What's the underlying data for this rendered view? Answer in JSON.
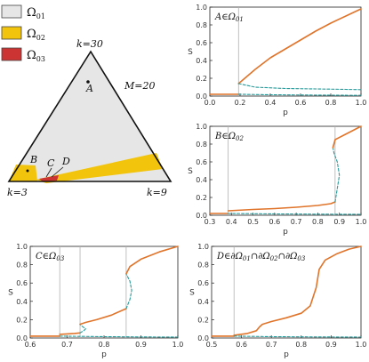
{
  "legend": [
    {
      "label": "Ω01",
      "color": "#e6e6e6"
    },
    {
      "label": "Ω02",
      "color": "#f2c40c"
    },
    {
      "label": "Ω03",
      "color": "#cc3333"
    }
  ],
  "triangle": {
    "top_label": "k=30",
    "left_label": "k=3",
    "right_label": "k=9",
    "m_label": "M=20",
    "points": [
      "A",
      "B",
      "C",
      "D"
    ]
  },
  "colors": {
    "stable": "#e0742a",
    "unstable": "#2a9a9a",
    "vline": "#b0b0b0",
    "omega01": "#e6e6e6",
    "omega02": "#f2c40c",
    "omega03": "#cc3333"
  },
  "chart_data": [
    {
      "type": "line",
      "title": "A∈Ω01",
      "xlabel": "p",
      "ylabel": "S",
      "xlim": [
        0.0,
        1.0
      ],
      "ylim": [
        0.0,
        1.0
      ],
      "xticks": [
        "0.0",
        "0.2",
        "0.4",
        "0.6",
        "0.8",
        "1.0"
      ],
      "yticks": [
        "0.0",
        "0.2",
        "0.4",
        "0.6",
        "0.8",
        "1.0"
      ],
      "vlines": [
        0.19
      ],
      "series": [
        {
          "style": "stable",
          "x": [
            0.0,
            0.19
          ],
          "y": [
            0.02,
            0.02
          ]
        },
        {
          "style": "stable",
          "x": [
            0.19,
            0.3,
            0.4,
            0.5,
            0.6,
            0.7,
            0.8,
            0.9,
            1.0
          ],
          "y": [
            0.14,
            0.3,
            0.43,
            0.53,
            0.63,
            0.73,
            0.82,
            0.9,
            0.98
          ]
        },
        {
          "style": "unstable",
          "x": [
            0.19,
            0.3,
            0.5,
            0.7,
            0.9,
            1.0
          ],
          "y": [
            0.14,
            0.1,
            0.085,
            0.08,
            0.075,
            0.072
          ]
        },
        {
          "style": "unstable",
          "x": [
            0.19,
            0.4,
            0.6,
            0.8,
            1.0
          ],
          "y": [
            0.02,
            0.015,
            0.012,
            0.01,
            0.008
          ]
        }
      ]
    },
    {
      "type": "line",
      "title": "B∈Ω02",
      "xlabel": "p",
      "ylabel": "S",
      "xlim": [
        0.3,
        1.0
      ],
      "ylim": [
        0.0,
        1.0
      ],
      "xticks": [
        "0.3",
        "0.4",
        "0.5",
        "0.6",
        "0.7",
        "0.8",
        "0.9",
        "1.0"
      ],
      "yticks": [
        "0.0",
        "0.2",
        "0.4",
        "0.6",
        "0.8",
        "1.0"
      ],
      "vlines": [
        0.385,
        0.88
      ],
      "series": [
        {
          "style": "stable",
          "x": [
            0.3,
            0.385
          ],
          "y": [
            0.02,
            0.02
          ]
        },
        {
          "style": "stable",
          "x": [
            0.385,
            0.5,
            0.6,
            0.7,
            0.8,
            0.86,
            0.88
          ],
          "y": [
            0.05,
            0.065,
            0.075,
            0.09,
            0.11,
            0.13,
            0.15
          ]
        },
        {
          "style": "unstable",
          "x": [
            0.88,
            0.89,
            0.9,
            0.89,
            0.875,
            0.87
          ],
          "y": [
            0.15,
            0.3,
            0.45,
            0.6,
            0.7,
            0.76
          ]
        },
        {
          "style": "stable",
          "x": [
            0.87,
            0.88,
            0.92,
            0.96,
            1.0
          ],
          "y": [
            0.76,
            0.85,
            0.9,
            0.95,
            1.0
          ]
        },
        {
          "style": "unstable",
          "x": [
            0.385,
            0.6,
            0.8,
            1.0
          ],
          "y": [
            0.02,
            0.015,
            0.012,
            0.01
          ]
        }
      ]
    },
    {
      "type": "line",
      "title": "C∈Ω03",
      "xlabel": "p",
      "ylabel": "S",
      "xlim": [
        0.6,
        1.0
      ],
      "ylim": [
        0.0,
        1.0
      ],
      "xticks": [
        "0.6",
        "0.7",
        "0.8",
        "0.9",
        "1.0"
      ],
      "yticks": [
        "0.0",
        "0.2",
        "0.4",
        "0.6",
        "0.8",
        "1.0"
      ],
      "vlines": [
        0.68,
        0.735,
        0.86
      ],
      "series": [
        {
          "style": "stable",
          "x": [
            0.6,
            0.68
          ],
          "y": [
            0.02,
            0.02
          ]
        },
        {
          "style": "stable",
          "x": [
            0.68,
            0.7,
            0.72,
            0.735
          ],
          "y": [
            0.04,
            0.045,
            0.05,
            0.055
          ]
        },
        {
          "style": "unstable",
          "x": [
            0.735,
            0.745,
            0.75,
            0.74,
            0.735
          ],
          "y": [
            0.055,
            0.08,
            0.1,
            0.13,
            0.15
          ]
        },
        {
          "style": "stable",
          "x": [
            0.735,
            0.75,
            0.78,
            0.82,
            0.86
          ],
          "y": [
            0.15,
            0.17,
            0.2,
            0.25,
            0.32
          ]
        },
        {
          "style": "unstable",
          "x": [
            0.86,
            0.87,
            0.875,
            0.87,
            0.86
          ],
          "y": [
            0.32,
            0.42,
            0.52,
            0.62,
            0.7
          ]
        },
        {
          "style": "stable",
          "x": [
            0.86,
            0.87,
            0.9,
            0.95,
            1.0
          ],
          "y": [
            0.7,
            0.78,
            0.86,
            0.94,
            1.0
          ]
        },
        {
          "style": "unstable",
          "x": [
            0.68,
            0.8,
            0.9,
            1.0
          ],
          "y": [
            0.02,
            0.015,
            0.012,
            0.01
          ]
        }
      ]
    },
    {
      "type": "line",
      "title": "D∈∂Ω01∩∂Ω02∩∂Ω03",
      "xlabel": "p",
      "ylabel": "S",
      "xlim": [
        0.5,
        1.0
      ],
      "ylim": [
        0.0,
        1.0
      ],
      "xticks": [
        "0.5",
        "0.6",
        "0.7",
        "0.8",
        "0.9",
        "1.0"
      ],
      "yticks": [
        "0.0",
        "0.2",
        "0.4",
        "0.6",
        "0.8",
        "1.0"
      ],
      "vlines": [
        0.575
      ],
      "series": [
        {
          "style": "stable",
          "x": [
            0.5,
            0.575
          ],
          "y": [
            0.02,
            0.02
          ]
        },
        {
          "style": "stable",
          "x": [
            0.575,
            0.62,
            0.65,
            0.66,
            0.67,
            0.7,
            0.75,
            0.8,
            0.83,
            0.85,
            0.86,
            0.88,
            0.92,
            0.96,
            1.0
          ],
          "y": [
            0.03,
            0.05,
            0.08,
            0.12,
            0.15,
            0.18,
            0.22,
            0.27,
            0.35,
            0.55,
            0.75,
            0.85,
            0.92,
            0.97,
            1.0
          ]
        },
        {
          "style": "unstable",
          "x": [
            0.575,
            0.7,
            0.85,
            1.0
          ],
          "y": [
            0.02,
            0.015,
            0.012,
            0.01
          ]
        }
      ]
    }
  ]
}
